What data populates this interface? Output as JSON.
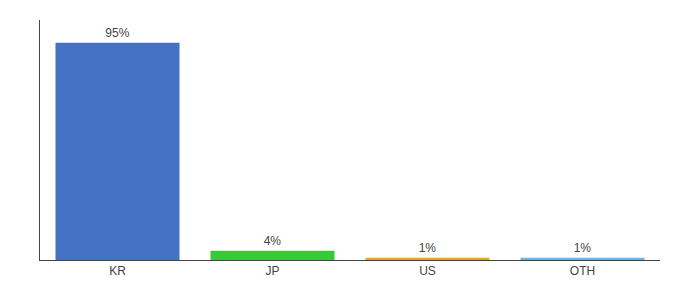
{
  "chart_data": {
    "type": "bar",
    "categories": [
      "KR",
      "JP",
      "US",
      "OTH"
    ],
    "values": [
      95,
      4,
      1,
      1
    ],
    "value_labels": [
      "95%",
      "4%",
      "1%",
      "1%"
    ],
    "colors": [
      "#4472c4",
      "#33cc33",
      "#e6a817",
      "#6ab4e8"
    ],
    "ylim": [
      0,
      105
    ],
    "data_labels": true,
    "tick_labels": "x",
    "grid": false
  }
}
